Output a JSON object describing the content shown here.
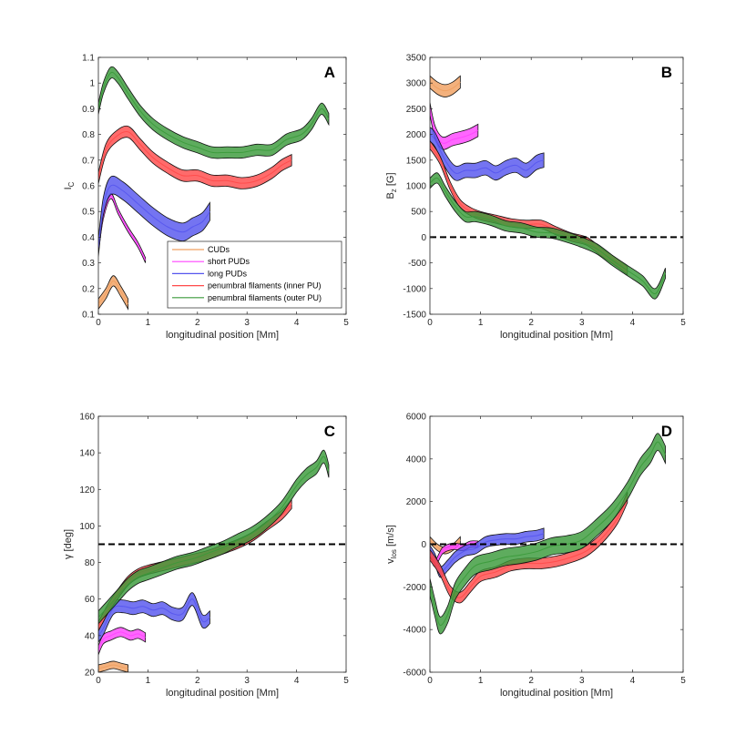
{
  "chart_data": [
    {
      "type": "area",
      "panel_label": "A",
      "xlabel": "longitudinal position [Mm]",
      "ylabel": "I",
      "ylabel_sub": "C",
      "xlim": [
        0,
        5
      ],
      "ylim": [
        0.1,
        1.1
      ],
      "xticks": [
        0,
        1,
        2,
        3,
        4,
        5
      ],
      "xticklabels": [
        "0",
        "1",
        "2",
        "3",
        "4",
        "5"
      ],
      "yticks": [
        0.1,
        0.2,
        0.3,
        0.4,
        0.5,
        0.6,
        0.7,
        0.8,
        0.9,
        1.0,
        1.1
      ],
      "yticklabels": [
        "0.1",
        "0.2",
        "0.3",
        "0.4",
        "0.5",
        "0.6",
        "0.7",
        "0.8",
        "0.9",
        "1",
        "1.1"
      ],
      "reference_line": null,
      "series": [
        {
          "name": "CUDs",
          "color": "#f0a060",
          "halfwidth": 0.02,
          "x": [
            0,
            0.15,
            0.3,
            0.45,
            0.6
          ],
          "y": [
            0.14,
            0.18,
            0.23,
            0.19,
            0.14
          ]
        },
        {
          "name": "short PUDs",
          "color": "#ff44ff",
          "halfwidth": 0.01,
          "x": [
            0,
            0.1,
            0.25,
            0.4,
            0.6,
            0.8,
            0.95
          ],
          "y": [
            0.35,
            0.48,
            0.56,
            0.5,
            0.43,
            0.37,
            0.31
          ]
        },
        {
          "name": "long PUDs",
          "color": "#5555ee",
          "halfwidth": 0.035,
          "x": [
            0,
            0.1,
            0.25,
            0.5,
            0.8,
            1.1,
            1.4,
            1.7,
            1.9,
            2.1,
            2.25
          ],
          "y": [
            0.36,
            0.52,
            0.6,
            0.58,
            0.53,
            0.48,
            0.44,
            0.42,
            0.44,
            0.46,
            0.5
          ]
        },
        {
          "name": "penumbral filaments (inner PU)",
          "color": "#ff4a4a",
          "halfwidth": 0.022,
          "x": [
            0,
            0.15,
            0.35,
            0.6,
            0.85,
            1.1,
            1.4,
            1.7,
            2.0,
            2.3,
            2.6,
            2.9,
            3.2,
            3.5,
            3.7,
            3.9
          ],
          "y": [
            0.63,
            0.74,
            0.79,
            0.81,
            0.76,
            0.71,
            0.67,
            0.64,
            0.64,
            0.62,
            0.62,
            0.61,
            0.62,
            0.65,
            0.68,
            0.7
          ]
        },
        {
          "name": "penumbral filaments (outer PU)",
          "color": "#3a9a3a",
          "halfwidth": 0.022,
          "x": [
            0,
            0.1,
            0.25,
            0.4,
            0.6,
            0.85,
            1.1,
            1.4,
            1.7,
            2.0,
            2.3,
            2.6,
            2.9,
            3.2,
            3.5,
            3.8,
            4.1,
            4.3,
            4.5,
            4.65
          ],
          "y": [
            0.9,
            0.98,
            1.04,
            1.02,
            0.96,
            0.89,
            0.84,
            0.8,
            0.77,
            0.75,
            0.73,
            0.73,
            0.73,
            0.74,
            0.74,
            0.78,
            0.8,
            0.84,
            0.9,
            0.86
          ]
        }
      ],
      "legend": {
        "placement": "bottom-right",
        "entries": [
          "CUDs",
          "short PUDs",
          "long PUDs",
          "penumbral filaments (inner PU)",
          "penumbral filaments (outer PU)"
        ]
      }
    },
    {
      "type": "area",
      "panel_label": "B",
      "xlabel": "longitudinal position [Mm]",
      "ylabel": "B",
      "ylabel_sub": "z",
      "ylabel_suffix": " [G]",
      "xlim": [
        0,
        5
      ],
      "ylim": [
        -1500,
        3500
      ],
      "xticks": [
        0,
        1,
        2,
        3,
        4,
        5
      ],
      "xticklabels": [
        "0",
        "1",
        "2",
        "3",
        "4",
        "5"
      ],
      "yticks": [
        -1500,
        -1000,
        -500,
        0,
        500,
        1000,
        1500,
        2000,
        2500,
        3000,
        3500
      ],
      "yticklabels": [
        "-1500",
        "-1000",
        "-500",
        "0",
        "500",
        "1000",
        "1500",
        "2000",
        "2500",
        "3000",
        "3500"
      ],
      "reference_line": 0,
      "series": [
        {
          "name": "CUDs",
          "color": "#f0a060",
          "halfwidth": 120,
          "x": [
            0,
            0.15,
            0.3,
            0.45,
            0.6
          ],
          "y": [
            3020,
            2900,
            2850,
            2900,
            3020
          ]
        },
        {
          "name": "short PUDs",
          "color": "#ff44ff",
          "halfwidth": 120,
          "x": [
            0,
            0.1,
            0.25,
            0.45,
            0.65,
            0.8,
            0.95
          ],
          "y": [
            2500,
            2050,
            1830,
            1900,
            1950,
            2000,
            2080
          ]
        },
        {
          "name": "long PUDs",
          "color": "#5555ee",
          "halfwidth": 140,
          "x": [
            0,
            0.1,
            0.3,
            0.5,
            0.7,
            0.9,
            1.1,
            1.3,
            1.5,
            1.7,
            1.9,
            2.1,
            2.25
          ],
          "y": [
            2000,
            1900,
            1500,
            1250,
            1300,
            1300,
            1350,
            1250,
            1350,
            1400,
            1300,
            1450,
            1500
          ]
        },
        {
          "name": "penumbral filaments (inner PU)",
          "color": "#ff4a4a",
          "halfwidth": 80,
          "x": [
            0,
            0.2,
            0.4,
            0.6,
            0.8,
            1.0,
            1.3,
            1.6,
            1.9,
            2.2,
            2.5,
            2.8,
            3.1,
            3.4,
            3.7,
            3.9
          ],
          "y": [
            1800,
            1500,
            1000,
            650,
            500,
            420,
            350,
            280,
            250,
            250,
            120,
            0,
            -80,
            -300,
            -500,
            -650
          ]
        },
        {
          "name": "penumbral filaments (outer PU)",
          "color": "#3a9a3a",
          "halfwidth": 100,
          "x": [
            0,
            0.15,
            0.3,
            0.5,
            0.7,
            0.9,
            1.2,
            1.5,
            1.8,
            2.1,
            2.4,
            2.7,
            3.0,
            3.3,
            3.6,
            3.9,
            4.2,
            4.45,
            4.65
          ],
          "y": [
            1050,
            1150,
            900,
            600,
            400,
            400,
            330,
            220,
            180,
            100,
            80,
            0,
            -100,
            -230,
            -450,
            -650,
            -850,
            -1100,
            -700
          ]
        }
      ]
    },
    {
      "type": "area",
      "panel_label": "C",
      "xlabel": "longitudinal position [Mm]",
      "ylabel": "γ [deg]",
      "xlim": [
        0,
        5
      ],
      "ylim": [
        20,
        160
      ],
      "xticks": [
        0,
        1,
        2,
        3,
        4,
        5
      ],
      "xticklabels": [
        "0",
        "1",
        "2",
        "3",
        "4",
        "5"
      ],
      "yticks": [
        20,
        40,
        60,
        80,
        100,
        120,
        140,
        160
      ],
      "yticklabels": [
        "20",
        "40",
        "60",
        "80",
        "100",
        "120",
        "140",
        "160"
      ],
      "reference_line": 90,
      "series": [
        {
          "name": "CUDs",
          "color": "#f0a060",
          "halfwidth": 2,
          "x": [
            0,
            0.15,
            0.3,
            0.45,
            0.6
          ],
          "y": [
            22,
            23,
            24,
            23,
            22
          ]
        },
        {
          "name": "short PUDs",
          "color": "#ff44ff",
          "halfwidth": 2.5,
          "x": [
            0,
            0.1,
            0.25,
            0.45,
            0.65,
            0.8,
            0.95
          ],
          "y": [
            32,
            38,
            40,
            42,
            40,
            41,
            39
          ]
        },
        {
          "name": "long PUDs",
          "color": "#5555ee",
          "halfwidth": 3.5,
          "x": [
            0,
            0.1,
            0.3,
            0.5,
            0.7,
            0.9,
            1.1,
            1.3,
            1.5,
            1.7,
            1.9,
            2.1,
            2.25
          ],
          "y": [
            40,
            44,
            55,
            56,
            55,
            56,
            54,
            55,
            52,
            52,
            60,
            48,
            50
          ]
        },
        {
          "name": "penumbral filaments (inner PU)",
          "color": "#ff4a4a",
          "halfwidth": 2.5,
          "x": [
            0,
            0.2,
            0.4,
            0.6,
            0.8,
            1.0,
            1.3,
            1.6,
            1.9,
            2.2,
            2.5,
            2.8,
            3.1,
            3.4,
            3.7,
            3.9
          ],
          "y": [
            45,
            55,
            63,
            70,
            74,
            76,
            78,
            80,
            82,
            84,
            87,
            90,
            94,
            100,
            106,
            112
          ]
        },
        {
          "name": "penumbral filaments (outer PU)",
          "color": "#3a9a3a",
          "halfwidth": 3.5,
          "x": [
            0,
            0.2,
            0.4,
            0.6,
            0.8,
            1.0,
            1.3,
            1.6,
            1.9,
            2.2,
            2.5,
            2.8,
            3.1,
            3.4,
            3.7,
            4.0,
            4.2,
            4.4,
            4.55,
            4.65
          ],
          "y": [
            50,
            56,
            62,
            68,
            72,
            74,
            77,
            80,
            82,
            85,
            88,
            92,
            96,
            102,
            110,
            122,
            128,
            132,
            138,
            130
          ]
        }
      ]
    },
    {
      "type": "area",
      "panel_label": "D",
      "xlabel": "longitudinal position [Mm]",
      "ylabel": "v",
      "ylabel_sub": "los",
      "ylabel_suffix": " [m/s]",
      "xlim": [
        0,
        5
      ],
      "ylim": [
        -6000,
        6000
      ],
      "xticks": [
        0,
        1,
        2,
        3,
        4,
        5
      ],
      "xticklabels": [
        "0",
        "1",
        "2",
        "3",
        "4",
        "5"
      ],
      "yticks": [
        -6000,
        -4000,
        -2000,
        0,
        2000,
        4000,
        6000
      ],
      "yticklabels": [
        "-6000",
        "-4000",
        "-2000",
        "0",
        "2000",
        "4000",
        "6000"
      ],
      "reference_line": 0,
      "series": [
        {
          "name": "CUDs",
          "color": "#f0a060",
          "halfwidth": 150,
          "x": [
            0,
            0.15,
            0.3,
            0.45,
            0.6
          ],
          "y": [
            200,
            -150,
            -300,
            -150,
            200
          ]
        },
        {
          "name": "short PUDs",
          "color": "#ff44ff",
          "halfwidth": 150,
          "x": [
            0,
            0.1,
            0.25,
            0.45,
            0.65,
            0.8,
            0.95
          ],
          "y": [
            -400,
            -900,
            -300,
            -100,
            -150,
            0,
            0
          ]
        },
        {
          "name": "long PUDs",
          "color": "#5555ee",
          "halfwidth": 250,
          "x": [
            0,
            0.1,
            0.2,
            0.35,
            0.5,
            0.7,
            0.9,
            1.1,
            1.3,
            1.5,
            1.7,
            1.9,
            2.1,
            2.25
          ],
          "y": [
            -300,
            -700,
            -1300,
            -1000,
            -600,
            -300,
            -200,
            100,
            200,
            250,
            250,
            350,
            400,
            500
          ]
        },
        {
          "name": "penumbral filaments (inner PU)",
          "color": "#ff4a4a",
          "halfwidth": 250,
          "x": [
            0,
            0.2,
            0.4,
            0.6,
            0.8,
            1.0,
            1.3,
            1.6,
            1.9,
            2.2,
            2.5,
            2.8,
            3.1,
            3.4,
            3.7,
            3.9
          ],
          "y": [
            -500,
            -1200,
            -2200,
            -2500,
            -2000,
            -1500,
            -1300,
            -1000,
            -900,
            -900,
            -800,
            -600,
            -300,
            300,
            1200,
            2200
          ]
        },
        {
          "name": "penumbral filaments (outer PU)",
          "color": "#3a9a3a",
          "halfwidth": 400,
          "x": [
            0,
            0.1,
            0.2,
            0.35,
            0.5,
            0.7,
            0.9,
            1.2,
            1.5,
            1.8,
            2.1,
            2.4,
            2.7,
            3.0,
            3.3,
            3.6,
            3.9,
            4.15,
            4.35,
            4.5,
            4.65
          ],
          "y": [
            -2000,
            -3000,
            -3800,
            -3300,
            -2200,
            -1500,
            -1000,
            -800,
            -600,
            -500,
            -350,
            -100,
            0,
            200,
            800,
            1500,
            2500,
            3600,
            4200,
            4800,
            4200
          ]
        }
      ]
    }
  ]
}
